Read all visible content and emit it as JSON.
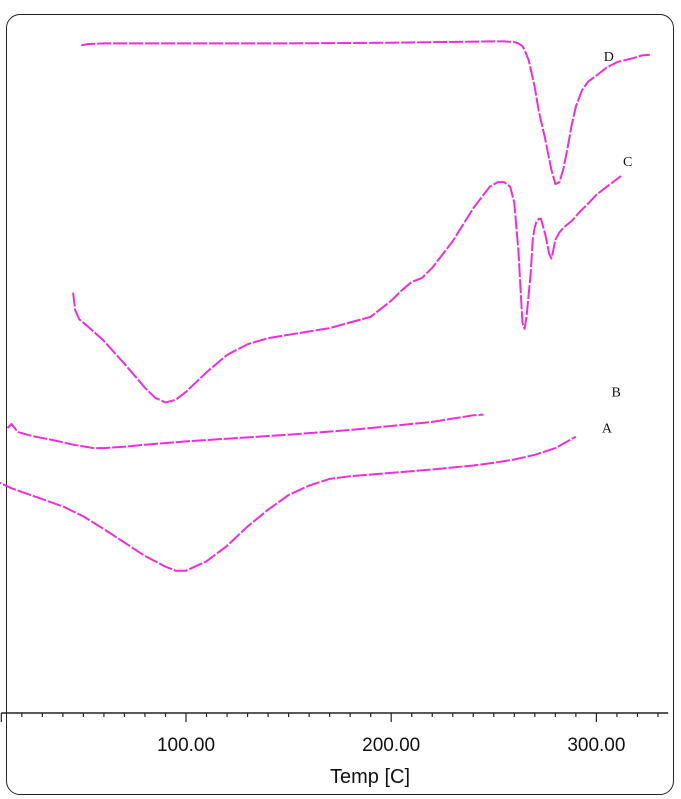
{
  "chart_data": {
    "type": "line",
    "title": "",
    "xlabel": "Temp [C]",
    "ylabel": "",
    "xlim": [
      10,
      335
    ],
    "x_ticks": [
      100,
      200,
      300
    ],
    "x_tick_labels": [
      "100.00",
      "200.00",
      "300.00"
    ],
    "grid": false,
    "legend": "none",
    "colors": {
      "line": "#ee2ddc",
      "highlight": "#39c6d8",
      "axis": "#222222"
    },
    "series": [
      {
        "name": "D",
        "x": [
          49,
          52,
          60,
          80,
          100,
          150,
          200,
          250,
          255,
          260,
          262,
          264,
          265,
          267,
          268,
          270,
          272,
          275,
          278,
          280,
          282,
          284,
          286,
          288,
          290,
          293,
          296,
          300,
          305,
          310,
          318,
          322,
          326
        ],
        "y": [
          97.7,
          97.9,
          98.0,
          98.0,
          98.0,
          98.0,
          98.1,
          98.3,
          98.3,
          98.2,
          98.0,
          97.6,
          97.0,
          95.5,
          94.2,
          91.4,
          87.8,
          83.8,
          79.2,
          77.0,
          77.3,
          79.4,
          82.5,
          85.9,
          88.6,
          91.0,
          92.3,
          93.2,
          94.4,
          95.2,
          95.8,
          96.2,
          96.3
        ]
      },
      {
        "name": "C",
        "x": [
          45,
          46,
          48,
          52,
          60,
          70,
          80,
          85,
          90,
          95,
          100,
          110,
          120,
          130,
          140,
          150,
          170,
          190,
          200,
          205,
          210,
          215,
          220,
          230,
          240,
          248,
          252,
          255,
          258,
          260,
          262,
          263,
          264,
          265,
          266,
          268,
          269,
          270,
          271,
          272,
          273,
          275,
          277,
          278,
          279,
          280,
          282,
          284,
          288,
          292,
          296,
          300,
          305,
          312
        ],
        "y": [
          60.8,
          58.2,
          56.8,
          55.8,
          53.6,
          50.2,
          46.6,
          45.1,
          44.4,
          44.8,
          46.0,
          48.9,
          51.5,
          53.1,
          54.0,
          54.5,
          55.5,
          57.2,
          59.6,
          61.1,
          62.4,
          63.0,
          64.5,
          68.5,
          73.4,
          76.6,
          77.3,
          77.3,
          76.6,
          74.2,
          67.1,
          61.5,
          56.3,
          55.4,
          57.3,
          63.7,
          68.8,
          70.6,
          71.6,
          71.8,
          71.8,
          69.6,
          66.6,
          65.9,
          67.1,
          68.7,
          69.8,
          70.5,
          71.5,
          72.9,
          74.1,
          75.4,
          76.6,
          78.2
        ]
      },
      {
        "name": "B",
        "x": [
          13,
          15,
          18,
          25,
          35,
          45,
          55,
          60,
          70,
          80,
          100,
          120,
          150,
          180,
          200,
          220,
          240,
          245
        ],
        "y": [
          40.6,
          41.2,
          40.0,
          39.4,
          38.8,
          38.1,
          37.6,
          37.6,
          37.8,
          38.1,
          38.6,
          39.0,
          39.6,
          40.3,
          40.9,
          41.5,
          42.5,
          42.6
        ]
      },
      {
        "name": "A",
        "x": [
          5,
          8,
          15,
          25,
          40,
          50,
          60,
          70,
          80,
          90,
          95,
          100,
          110,
          120,
          130,
          140,
          150,
          160,
          170,
          180,
          200,
          220,
          240,
          250,
          260,
          270,
          280,
          290
        ],
        "y": [
          33.7,
          32.6,
          31.6,
          30.5,
          28.9,
          27.4,
          25.5,
          23.5,
          21.5,
          19.9,
          19.3,
          19.3,
          20.7,
          23.0,
          25.9,
          28.4,
          30.6,
          32.0,
          33.0,
          33.4,
          33.9,
          34.4,
          35.0,
          35.4,
          35.9,
          36.6,
          37.6,
          39.3
        ]
      }
    ],
    "curve_labels": [
      "D",
      "C",
      "B",
      "A"
    ]
  }
}
